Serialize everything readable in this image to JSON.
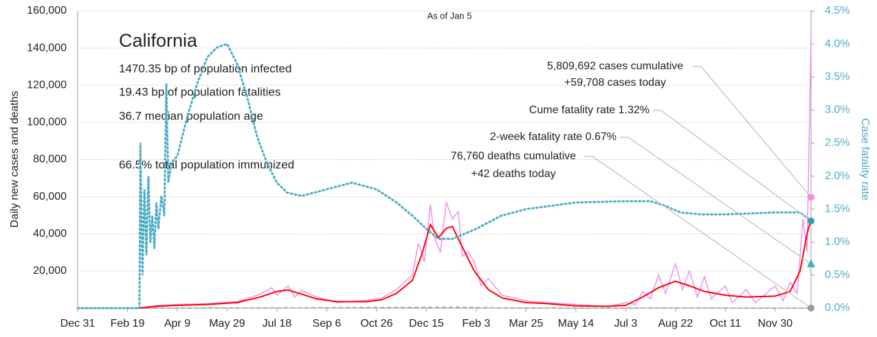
{
  "chart_data": {
    "type": "line",
    "title": "California",
    "subtitle": "As of Jan 5",
    "stats": [
      "1470.35 bp of population infected",
      "19.43 bp of population fatalities",
      "36.7 median population age",
      "66.5% total population immunized"
    ],
    "ylabel": "Daily new cases and deaths",
    "y2label": "Case fatality rate",
    "xlim": [
      0,
      736
    ],
    "xticks": [
      {
        "value": 0,
        "label": "Dec 31"
      },
      {
        "value": 50,
        "label": "Feb 19"
      },
      {
        "value": 100,
        "label": "Apr 9"
      },
      {
        "value": 150,
        "label": "May 29"
      },
      {
        "value": 200,
        "label": "Jul 18"
      },
      {
        "value": 250,
        "label": "Sep 6"
      },
      {
        "value": 300,
        "label": "Oct 26"
      },
      {
        "value": 350,
        "label": "Dec 15"
      },
      {
        "value": 400,
        "label": "Feb 3"
      },
      {
        "value": 450,
        "label": "Mar 25"
      },
      {
        "value": 500,
        "label": "May 14"
      },
      {
        "value": 550,
        "label": "Jul 3"
      },
      {
        "value": 600,
        "label": "Aug 22"
      },
      {
        "value": 650,
        "label": "Oct 11"
      },
      {
        "value": 700,
        "label": "Nov 30"
      }
    ],
    "ylim": [
      0,
      160000
    ],
    "yticks": [
      {
        "value": 20000,
        "label": "20,000"
      },
      {
        "value": 40000,
        "label": "40,000"
      },
      {
        "value": 60000,
        "label": "60,000"
      },
      {
        "value": 80000,
        "label": "80,000"
      },
      {
        "value": 100000,
        "label": "100,000"
      },
      {
        "value": 120000,
        "label": "120,000"
      },
      {
        "value": 140000,
        "label": "140,000"
      },
      {
        "value": 160000,
        "label": "160,000"
      }
    ],
    "y2lim": [
      0,
      4.5
    ],
    "y2ticks": [
      {
        "value": 0,
        "label": "0.0%"
      },
      {
        "value": 0.5,
        "label": "0.5%"
      },
      {
        "value": 1,
        "label": "1.0%"
      },
      {
        "value": 1.5,
        "label": "1.5%"
      },
      {
        "value": 2,
        "label": "2.0%"
      },
      {
        "value": 2.5,
        "label": "2.5%"
      },
      {
        "value": 3,
        "label": "3.0%"
      },
      {
        "value": 3.5,
        "label": "3.5%"
      },
      {
        "value": 4,
        "label": "4.0%"
      },
      {
        "value": 4.5,
        "label": "4.5%"
      }
    ],
    "grid": true,
    "series": [
      {
        "color": "#f48cf0",
        "style": "solid",
        "width": 1.5,
        "x": [
          60,
          80,
          100,
          130,
          160,
          183,
          195,
          200,
          211,
          218,
          225,
          240,
          260,
          290,
          305,
          320,
          336,
          342,
          348,
          354,
          358,
          364,
          370,
          376,
          382,
          386,
          392,
          398,
          405,
          412,
          426,
          450,
          470,
          500,
          532,
          550,
          560,
          567,
          575,
          583,
          590,
          600,
          607,
          614,
          622,
          629,
          636,
          650,
          657,
          671,
          680,
          700,
          708,
          715,
          722,
          728,
          732,
          736
        ],
        "values": [
          0,
          1500,
          2000,
          2500,
          3500,
          7500,
          11000,
          7000,
          12000,
          6000,
          9500,
          6000,
          3000,
          4200,
          5500,
          10000,
          18000,
          35000,
          25000,
          56000,
          38000,
          30000,
          57000,
          48000,
          52000,
          28000,
          30000,
          25000,
          12000,
          16000,
          7000,
          4000,
          3000,
          2000,
          800,
          3000,
          2000,
          9000,
          5000,
          18000,
          8000,
          24000,
          10000,
          20000,
          6000,
          17000,
          5000,
          12000,
          3000,
          10000,
          3000,
          12000,
          4000,
          14000,
          8000,
          48000,
          30000,
          146000
        ]
      },
      {
        "color": "#aaaaaa",
        "style": "dashed",
        "width": 2,
        "x": [
          0,
          60,
          200,
          360,
          380,
          420,
          500,
          600,
          700,
          736
        ],
        "values": [
          0,
          0,
          150,
          450,
          500,
          150,
          30,
          100,
          50,
          42
        ]
      },
      {
        "color": "#ff0000",
        "style": "solid",
        "width": 2,
        "x": [
          60,
          80,
          100,
          130,
          160,
          183,
          200,
          211,
          225,
          240,
          260,
          290,
          305,
          320,
          336,
          346,
          354,
          362,
          370,
          376,
          386,
          398,
          412,
          426,
          450,
          470,
          500,
          532,
          550,
          567,
          583,
          600,
          614,
          629,
          650,
          671,
          700,
          715,
          725,
          732,
          736
        ],
        "values": [
          0,
          1000,
          1500,
          2000,
          3000,
          6000,
          9000,
          9800,
          7500,
          5000,
          3500,
          3500,
          4500,
          8000,
          15000,
          30000,
          45000,
          38000,
          43000,
          44000,
          33000,
          20000,
          10000,
          5500,
          3000,
          2500,
          1200,
          1000,
          1500,
          6000,
          11000,
          14500,
          12000,
          9000,
          7000,
          6000,
          6500,
          9000,
          20000,
          40000,
          47700
        ]
      },
      {
        "color": "#4bacc6",
        "style": "dotted",
        "width": 3,
        "axis": "y2",
        "x": [
          0,
          62,
          63,
          65,
          67,
          69,
          71,
          73,
          75,
          77,
          79,
          81,
          84,
          87,
          89,
          91,
          94,
          100,
          110,
          120,
          130,
          140,
          150,
          160,
          170,
          180,
          190,
          200,
          210,
          225,
          250,
          275,
          300,
          320,
          336,
          350,
          362,
          376,
          400,
          425,
          450,
          475,
          500,
          550,
          575,
          590,
          605,
          625,
          650,
          700,
          725,
          736
        ],
        "values": [
          0,
          0,
          2.5,
          0.5,
          1.8,
          0.8,
          2.0,
          1.0,
          1.4,
          0.9,
          1.6,
          1.2,
          1.7,
          1.4,
          3.4,
          1.9,
          2.2,
          2.3,
          2.9,
          3.4,
          3.8,
          3.95,
          4.0,
          3.7,
          3.2,
          2.6,
          2.2,
          1.9,
          1.75,
          1.7,
          1.8,
          1.9,
          1.8,
          1.6,
          1.4,
          1.2,
          1.05,
          1.05,
          1.2,
          1.4,
          1.5,
          1.55,
          1.6,
          1.62,
          1.62,
          1.55,
          1.45,
          1.42,
          1.42,
          1.45,
          1.45,
          1.32
        ]
      }
    ],
    "annotations": [
      {
        "lines": [
          "5,809,692 cases cumulative",
          "+59,708 cases today"
        ],
        "value": 59708,
        "color": "#f48cf0",
        "marker": "circle"
      },
      {
        "lines": [
          "Cume fatality rate 1.32%"
        ],
        "value": 1.32,
        "axis": "y2",
        "color": "#3a9ab5",
        "marker": "circle"
      },
      {
        "lines": [
          "2-week fatality rate 0.67%"
        ],
        "value": 0.67,
        "axis": "y2",
        "color": "#4bacc6",
        "marker": "triangle"
      },
      {
        "lines": [
          "76,760 deaths cumulative",
          "+42 deaths today"
        ],
        "value": 42,
        "color": "#999999",
        "marker": "circle"
      }
    ]
  }
}
